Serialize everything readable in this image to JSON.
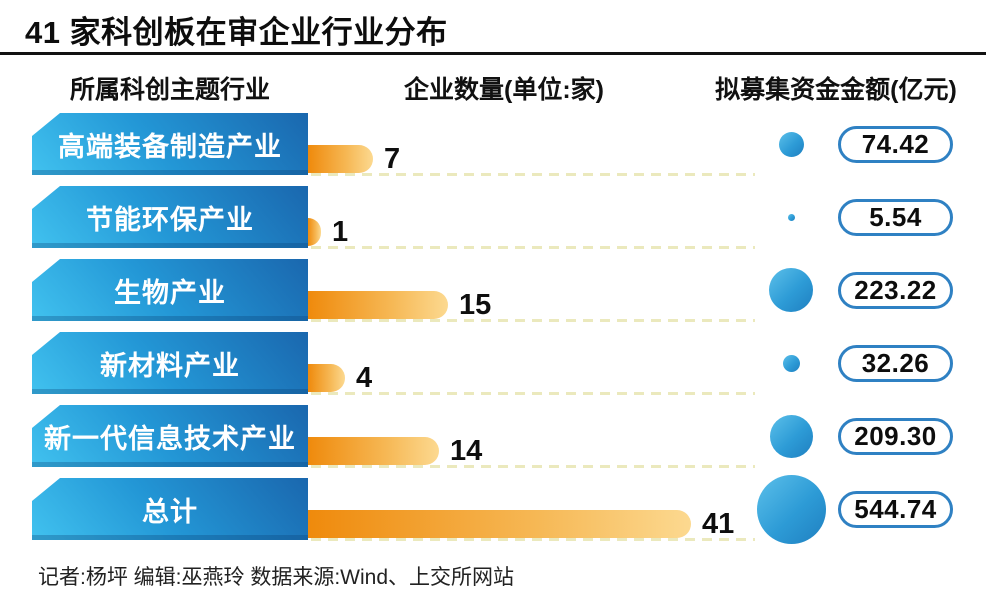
{
  "title": "41 家科创板在审企业行业分布",
  "columns": {
    "industry": "所属科创主题行业",
    "count": "企业数量(单位:家)",
    "funds": "拟募集资金金额(亿元)"
  },
  "rows": [
    {
      "label": "高端装备制造产业",
      "count": 7,
      "count_label": "7",
      "amount": 74.42,
      "amount_label": "74.42"
    },
    {
      "label": "节能环保产业",
      "count": 1,
      "count_label": "1",
      "amount": 5.54,
      "amount_label": "5.54"
    },
    {
      "label": "生物产业",
      "count": 15,
      "count_label": "15",
      "amount": 223.22,
      "amount_label": "223.22"
    },
    {
      "label": "新材料产业",
      "count": 4,
      "count_label": "4",
      "amount": 32.26,
      "amount_label": "32.26"
    },
    {
      "label": "新一代信息技术产业",
      "count": 14,
      "count_label": "14",
      "amount": 209.3,
      "amount_label": "209.30"
    },
    {
      "label": "总计",
      "count": 41,
      "count_label": "41",
      "amount": 544.74,
      "amount_label": "544.74"
    }
  ],
  "footer": "记者:杨坪 编辑:巫燕玲 数据来源:Wind、上交所网站",
  "colors": {
    "label_box_light": "#41c2ef",
    "label_box_dark": "#1a67ae",
    "bar_start": "#ef8a0c",
    "bar_end": "#fcd990",
    "bubble_blue": "#2d9bd6",
    "pill_border": "#2f81c3",
    "dash": "#ebe9bd",
    "text": "#0d0d0d"
  },
  "chart_data": {
    "type": "bar",
    "orientation": "horizontal",
    "title": "41 家科创板在审企业行业分布",
    "categories": [
      "高端装备制造产业",
      "节能环保产业",
      "生物产业",
      "新材料产业",
      "新一代信息技术产业",
      "总计"
    ],
    "series": [
      {
        "name": "企业数量(单位:家)",
        "values": [
          7,
          1,
          15,
          4,
          14,
          41
        ]
      },
      {
        "name": "拟募集资金金额(亿元)",
        "values": [
          74.42,
          5.54,
          223.22,
          32.26,
          209.3,
          544.74
        ]
      }
    ],
    "value_labels": true,
    "xlim": [
      0,
      41
    ],
    "grid": false,
    "legend": "none",
    "notes": "企业数量 encoded as orange horizontal bars with value labels; 拟募集资金金额 encoded as blue bubble size plus outlined value badge"
  }
}
